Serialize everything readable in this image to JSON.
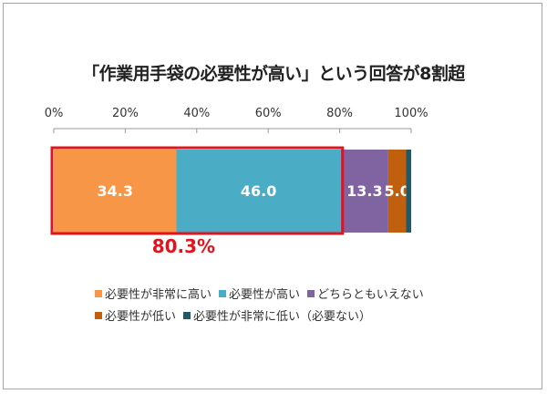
{
  "chart_data": {
    "type": "bar",
    "orientation": "horizontal-stacked-100",
    "title": "「作業用手袋の必要性が高い」という回答が8割超",
    "xlim": [
      0,
      100
    ],
    "ticks": [
      "0%",
      "20%",
      "40%",
      "60%",
      "80%",
      "100%"
    ],
    "tick_values": [
      0,
      20,
      40,
      60,
      80,
      100
    ],
    "grid": false,
    "legend_position": "bottom",
    "series": [
      {
        "name": "必要性が非常に高い",
        "value": 34.3,
        "label": "34.3",
        "color": "#f79646"
      },
      {
        "name": "必要性が高い",
        "value": 46.0,
        "label": "46.0",
        "color": "#4bacc6"
      },
      {
        "name": "どちらともいえない",
        "value": 13.3,
        "label": "13.3",
        "color": "#8064a2"
      },
      {
        "name": "必要性が低い",
        "value": 5.0,
        "label": "5.0",
        "color": "#c0600f"
      },
      {
        "name": "必要性が非常に低い（必要ない）",
        "value": 1.4,
        "label": "",
        "color": "#215968"
      }
    ],
    "annotation": {
      "text": "80.3%",
      "covers": [
        0,
        80.3
      ],
      "color": "#e0141e"
    }
  }
}
